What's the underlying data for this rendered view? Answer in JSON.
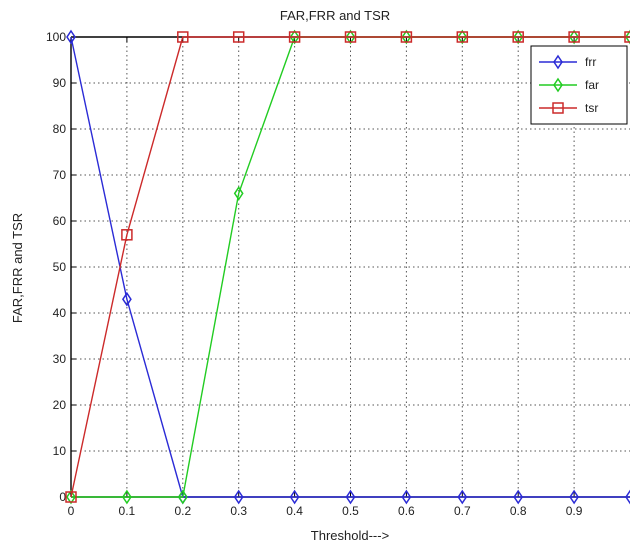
{
  "chart_data": {
    "type": "line",
    "title": "FAR,FRR and TSR",
    "xlabel": "Threshold--->",
    "ylabel": "FAR,FRR and TSR",
    "xlim": [
      0,
      1
    ],
    "ylim": [
      0,
      100
    ],
    "x_ticks": [
      0,
      0.1,
      0.2,
      0.3,
      0.4,
      0.5,
      0.6,
      0.7,
      0.8,
      0.9
    ],
    "x_tick_labels": [
      "0",
      "0.1",
      "0.2",
      "0.3",
      "0.4",
      "0.5",
      "0.6",
      "0.7",
      "0.8",
      "0.9"
    ],
    "y_ticks": [
      0,
      10,
      20,
      30,
      40,
      50,
      60,
      70,
      80,
      90,
      100
    ],
    "y_tick_labels": [
      "0",
      "10",
      "20",
      "30",
      "40",
      "50",
      "60",
      "70",
      "80",
      "90",
      "100"
    ],
    "grid": true,
    "legend_position": "top-right",
    "x": [
      0,
      0.1,
      0.2,
      0.3,
      0.4,
      0.5,
      0.6,
      0.7,
      0.8,
      0.9,
      1.0
    ],
    "series": [
      {
        "name": "frr",
        "color": "#2b2bd6",
        "marker": "diamond",
        "values": [
          100,
          43,
          0,
          0,
          0,
          0,
          0,
          0,
          0,
          0,
          0
        ]
      },
      {
        "name": "far",
        "color": "#22cc22",
        "marker": "diamond",
        "values": [
          0,
          0,
          0,
          66,
          100,
          100,
          100,
          100,
          100,
          100,
          100
        ]
      },
      {
        "name": "tsr",
        "color": "#cc2a2a",
        "marker": "square",
        "values": [
          0,
          57,
          100,
          100,
          100,
          100,
          100,
          100,
          100,
          100,
          100
        ]
      }
    ]
  }
}
